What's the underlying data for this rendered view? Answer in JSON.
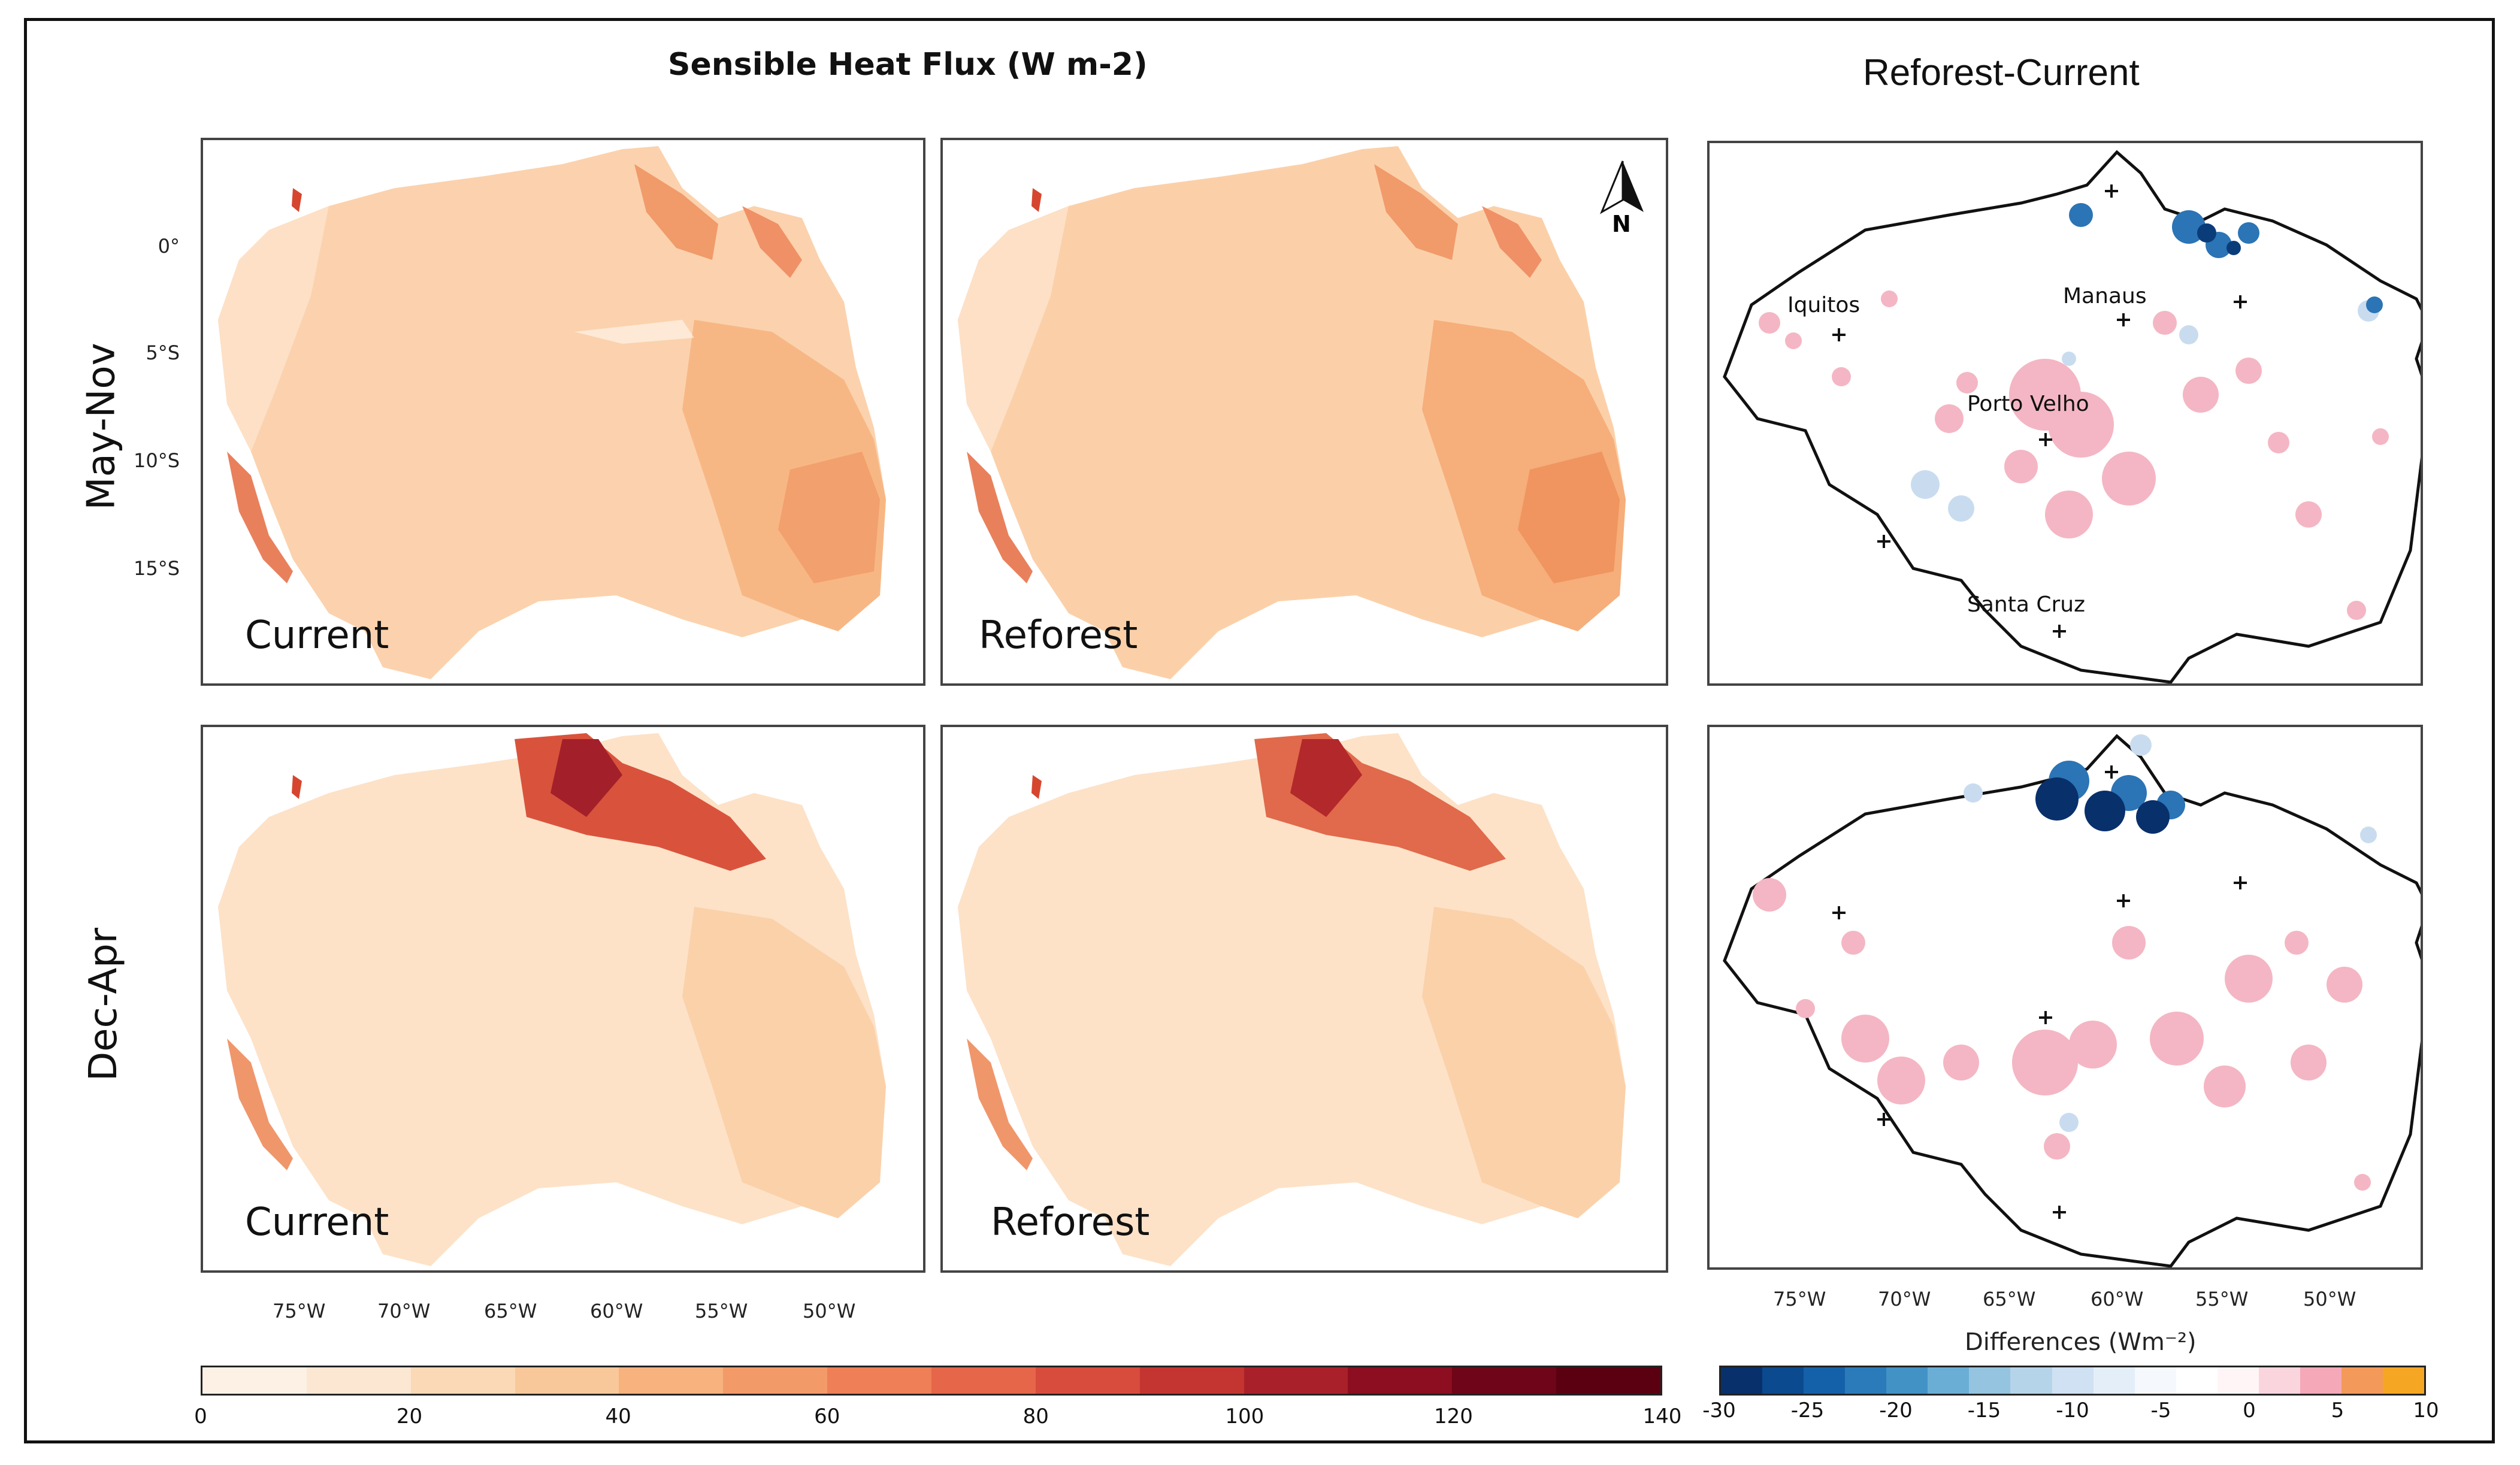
{
  "titles": {
    "left": "Sensible Heat Flux (W m-2)",
    "right": "Reforest-Current"
  },
  "rows": [
    "May-Nov",
    "Dec-Apr"
  ],
  "panels": {
    "current": "Current",
    "reforest": "Reforest"
  },
  "north_label": "N",
  "latitude_ticks": [
    "0°",
    "5°S",
    "10°S",
    "15°S"
  ],
  "longitude_ticks": [
    "75°W",
    "70°W",
    "65°W",
    "60°W",
    "55°W",
    "50°W"
  ],
  "cities": {
    "iquitos": "Iquitos",
    "manaus": "Manaus",
    "porto_velho": "Porto Velho",
    "santa_cruz": "Santa Cruz"
  },
  "colorbar_flux": {
    "labels": [
      "0",
      "20",
      "40",
      "60",
      "80",
      "100",
      "120",
      "140"
    ],
    "colors": [
      "#fdf1e6",
      "#fce7d3",
      "#fbd9b6",
      "#f9c89a",
      "#f7b27d",
      "#f39a69",
      "#ee7f56",
      "#e6664a",
      "#d84c3d",
      "#c43531",
      "#a9202a",
      "#8c0e20",
      "#6f0518",
      "#5a0010"
    ]
  },
  "colorbar_diff": {
    "title": "Differences (Wm⁻²)",
    "labels": [
      "-30",
      "-25",
      "-20",
      "-15",
      "-10",
      "-5",
      "0",
      "5",
      "10"
    ],
    "colors": [
      "#08306b",
      "#0b4a8f",
      "#1561a9",
      "#2b7bba",
      "#4292c6",
      "#6aaed6",
      "#94c4df",
      "#b5d4e9",
      "#cfe1f2",
      "#e3eef8",
      "#f5f9fd",
      "#ffffff",
      "#fff5f7",
      "#fbd5de",
      "#f4a8b8",
      "#f39a5a",
      "#f5a623"
    ]
  }
}
